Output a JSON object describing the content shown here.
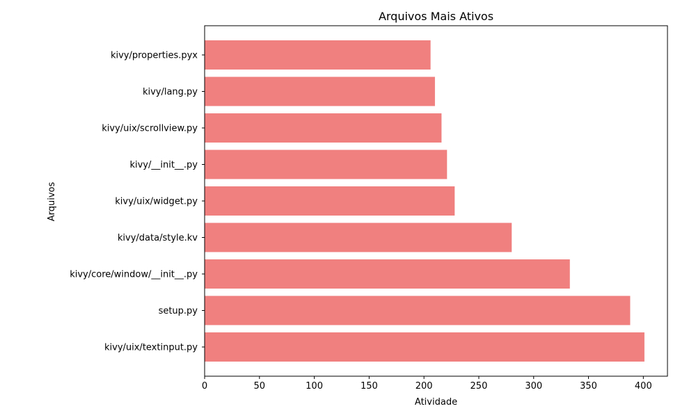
{
  "chart_data": {
    "type": "bar",
    "orientation": "horizontal",
    "title": "Arquivos Mais Ativos",
    "xlabel": "Atividade",
    "ylabel": "Arquivos",
    "categories": [
      "kivy/properties.pyx",
      "kivy/lang.py",
      "kivy/uix/scrollview.py",
      "kivy/__init__.py",
      "kivy/uix/widget.py",
      "kivy/data/style.kv",
      "kivy/core/window/__init__.py",
      "setup.py",
      "kivy/uix/textinput.py"
    ],
    "values": [
      206,
      210,
      216,
      221,
      228,
      280,
      333,
      388,
      401
    ],
    "xlim": [
      0,
      422
    ],
    "xticks": [
      0,
      50,
      100,
      150,
      200,
      250,
      300,
      350,
      400
    ],
    "grid": false,
    "bar_color": "#f08080"
  }
}
